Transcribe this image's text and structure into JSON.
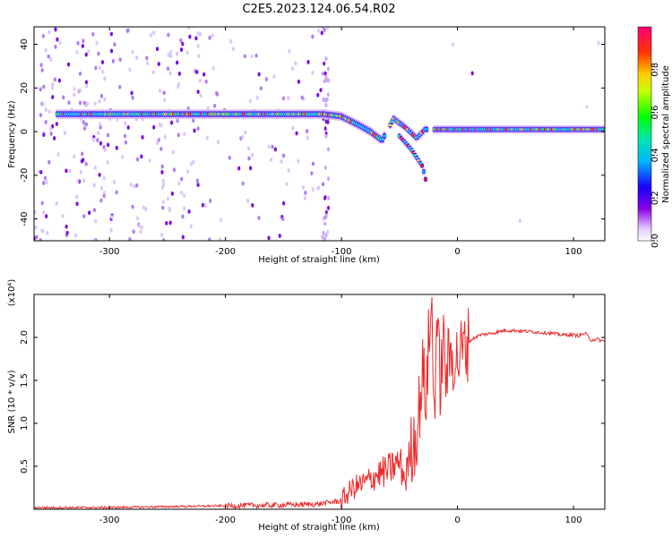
{
  "title": "C2E5.2023.124.06.54.R02",
  "colors": {
    "axis": "#000000",
    "snr_line": "#ee2a2a",
    "background": "#ffffff"
  },
  "chart_data": [
    {
      "type": "heatmap",
      "xlabel": "Height of straight line (km)",
      "ylabel": "Frequency (Hz)",
      "xlim": [
        -365,
        127
      ],
      "ylim": [
        -50,
        48
      ],
      "xticks": [
        -300,
        -200,
        -100,
        0,
        100
      ],
      "yticks": [
        -40,
        -20,
        0,
        20,
        40
      ],
      "colorbar": {
        "label": "Normalized spectral amplitude",
        "range": [
          0.0,
          1.0
        ],
        "ticks": [
          "0.0",
          "0.2",
          "0.4",
          "0.6",
          "0.8"
        ],
        "colormap": [
          "#ffffff",
          "#d9b3ff",
          "#7a00e6",
          "#0000ff",
          "#00bfff",
          "#00e6a0",
          "#00ff00",
          "#ffff00",
          "#ff9900",
          "#ff0000",
          "#ff00aa"
        ]
      },
      "ridge": [
        {
          "x": -350,
          "freq": 8
        },
        {
          "x": -300,
          "freq": 8
        },
        {
          "x": -250,
          "freq": 8
        },
        {
          "x": -200,
          "freq": 8
        },
        {
          "x": -150,
          "freq": 8
        },
        {
          "x": -115,
          "freq": 8
        },
        {
          "x": -100,
          "freq": 7
        },
        {
          "x": -85,
          "freq": 3
        },
        {
          "x": -75,
          "freq": 0
        },
        {
          "x": -65,
          "freq": -4
        },
        {
          "x": -55,
          "freq": 6
        },
        {
          "x": -45,
          "freq": 2
        },
        {
          "x": -35,
          "freq": -3
        },
        {
          "x": -28,
          "freq": 1
        },
        {
          "x": -10,
          "freq": 1
        },
        {
          "x": 0,
          "freq": 1
        },
        {
          "x": 50,
          "freq": 1
        },
        {
          "x": 100,
          "freq": 1
        },
        {
          "x": 125,
          "freq": 1
        }
      ],
      "branch": [
        {
          "x": -50,
          "freq": -2
        },
        {
          "x": -40,
          "freq": -8
        },
        {
          "x": -30,
          "freq": -16
        },
        {
          "x": -27,
          "freq": -23
        }
      ]
    },
    {
      "type": "line",
      "xlabel": "Height of straight line (km)",
      "ylabel": "SNR (10 * v/v)",
      "scale_label": "(x10⁴)",
      "xlim": [
        -365,
        127
      ],
      "ylim": [
        0,
        2.5
      ],
      "xticks": [
        -300,
        -200,
        -100,
        0,
        100
      ],
      "yticks": [
        "0.5",
        "1.0",
        "1.5",
        "2.0"
      ],
      "ytick_values": [
        0.5,
        1.0,
        1.5,
        2.0
      ],
      "series": [
        {
          "color": "#ee2a2a",
          "x": [
            -365,
            -300,
            -250,
            -200,
            -150,
            -120,
            -100,
            -90,
            -80,
            -70,
            -60,
            -50,
            -45,
            -40,
            -35,
            -30,
            -27,
            -25,
            -22,
            -20,
            -18,
            -15,
            -12,
            -10,
            -5,
            0,
            5,
            10,
            15,
            20,
            30,
            40,
            50,
            60,
            70,
            80,
            90,
            100,
            105,
            110,
            115,
            120,
            127
          ],
          "y": [
            0.02,
            0.02,
            0.03,
            0.04,
            0.05,
            0.06,
            0.1,
            0.25,
            0.3,
            0.4,
            0.45,
            0.55,
            0.35,
            0.7,
            0.9,
            1.6,
            1.3,
            1.9,
            2.3,
            1.1,
            2.2,
            1.5,
            1.9,
            1.6,
            1.8,
            1.75,
            1.85,
            1.95,
            2.0,
            2.03,
            2.05,
            2.08,
            2.08,
            2.07,
            2.06,
            2.05,
            2.03,
            2.03,
            2.02,
            2.05,
            1.97,
            1.98,
            1.95
          ]
        }
      ]
    }
  ]
}
